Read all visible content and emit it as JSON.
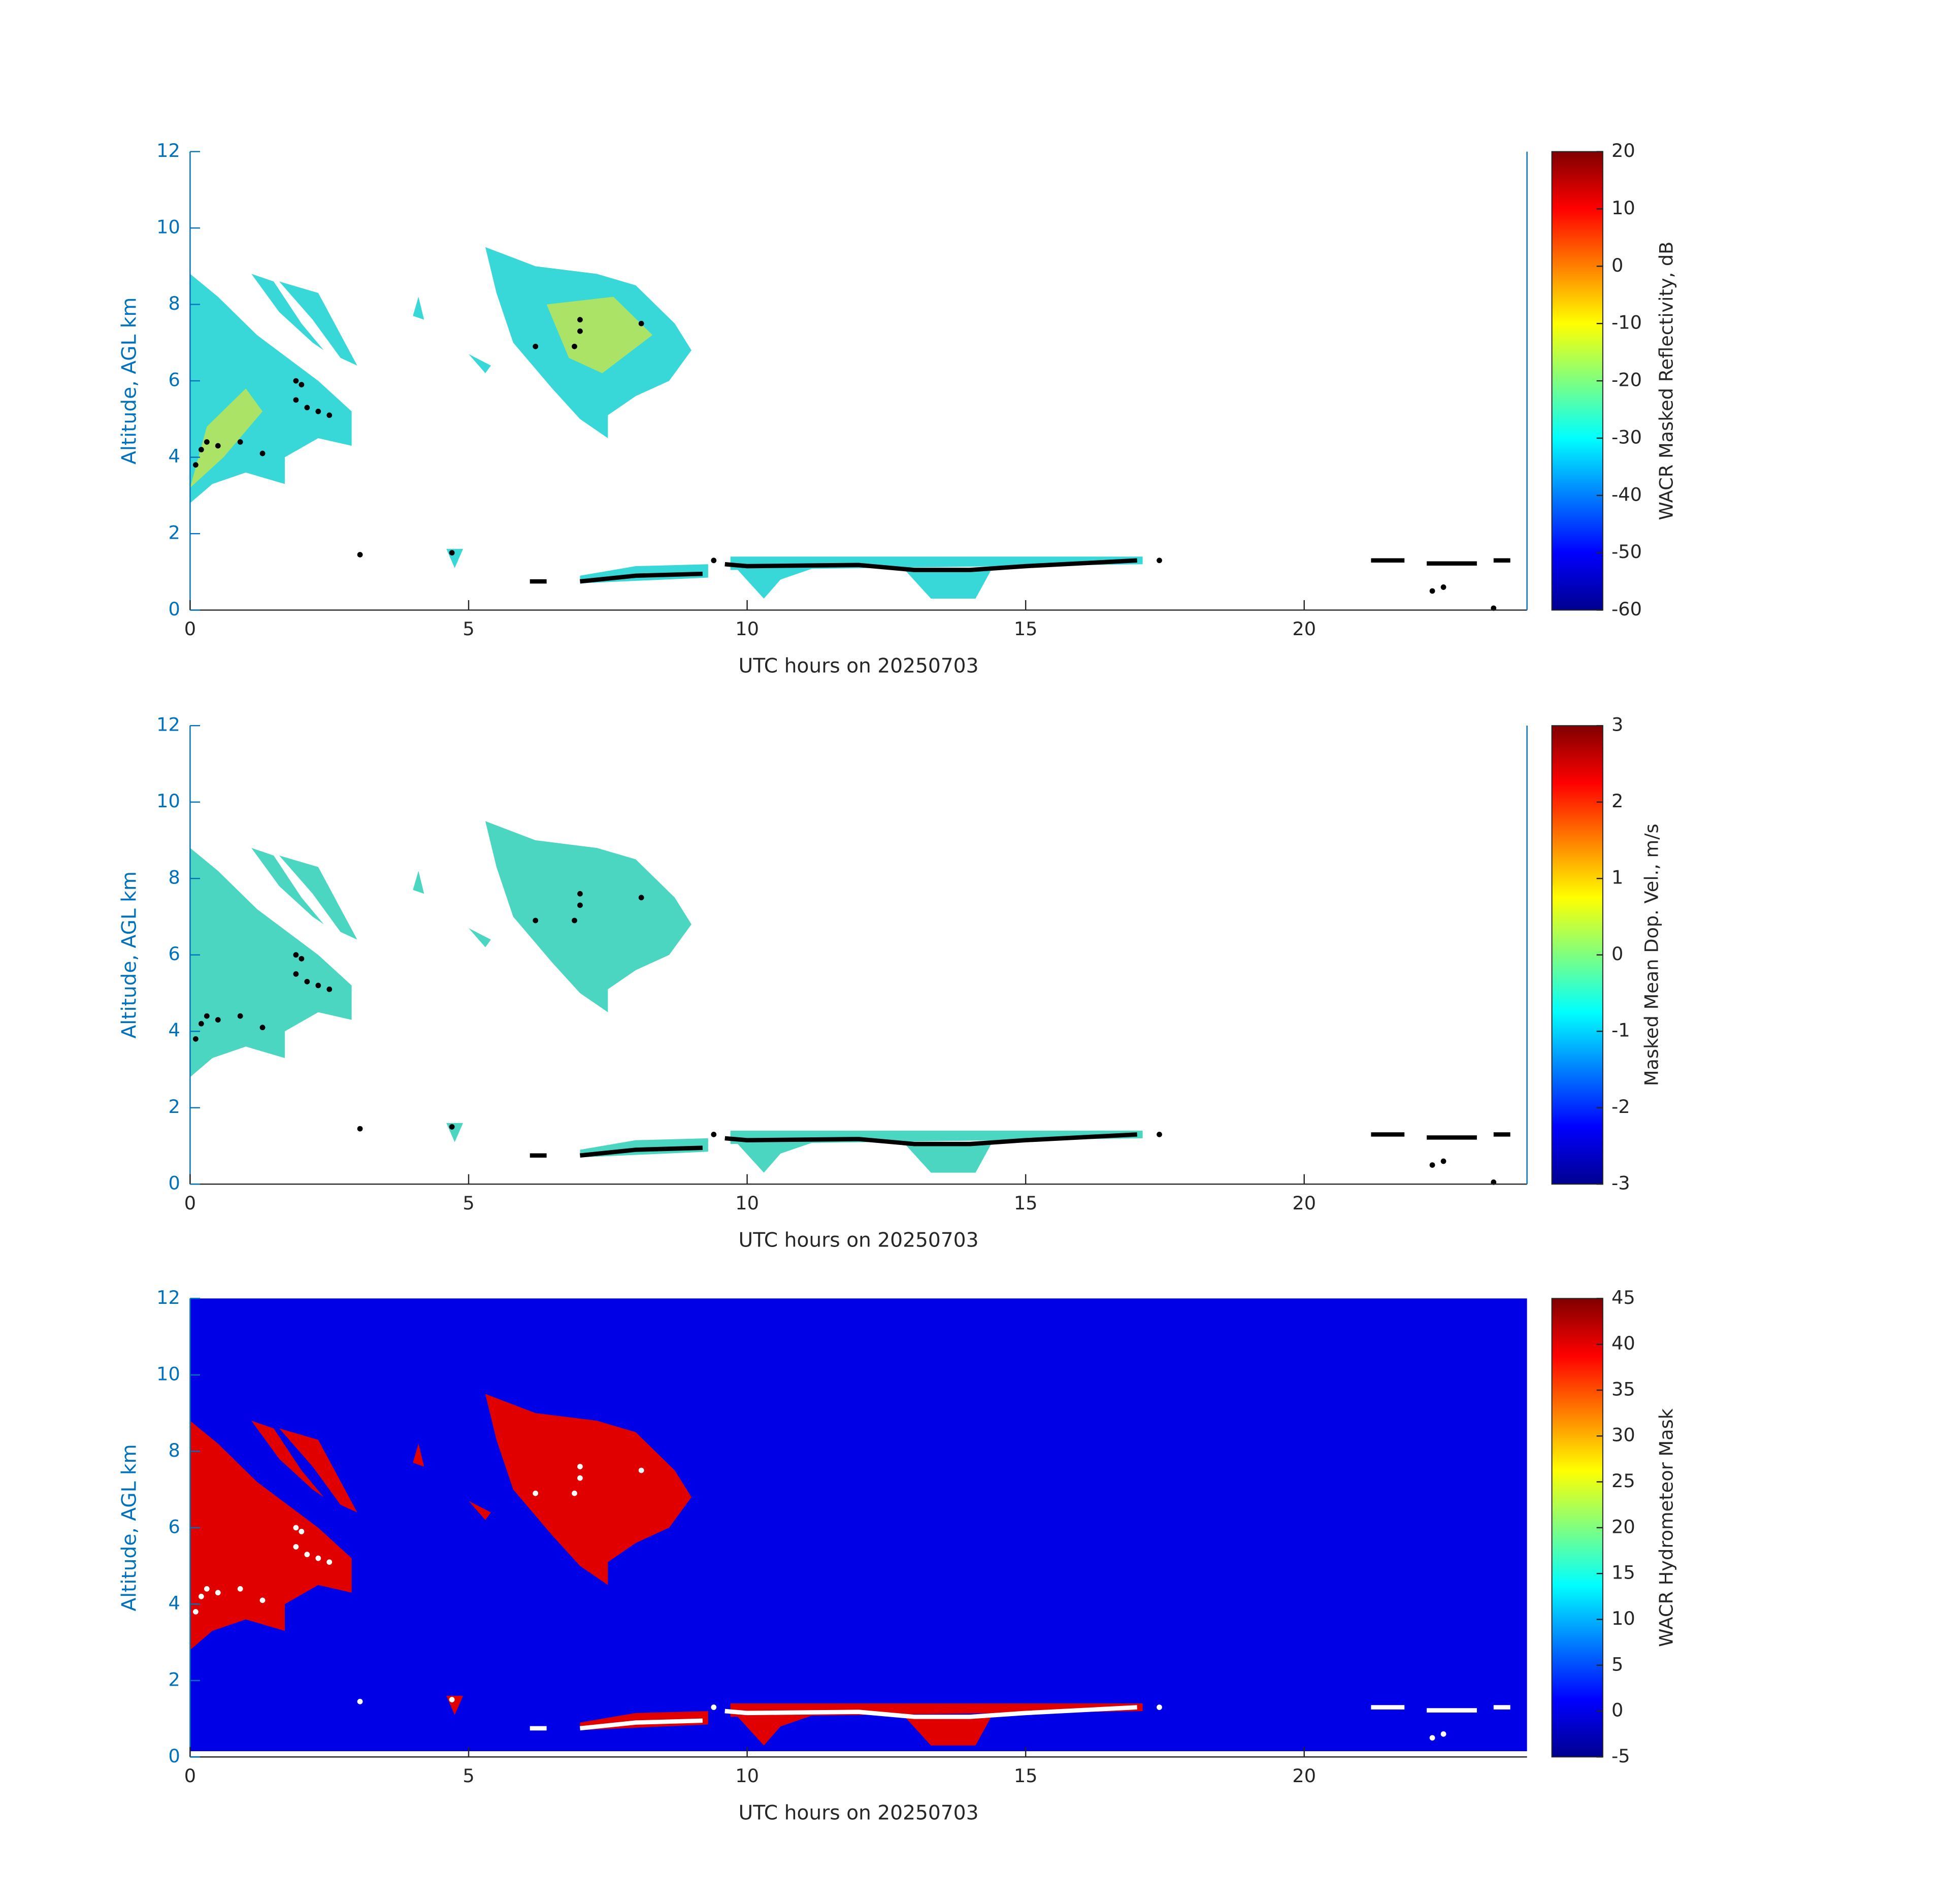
{
  "chart_data": [
    {
      "type": "heatmap",
      "xlabel": "UTC hours on 20250703",
      "ylabel": "Altitude, AGL km",
      "xlim": [
        0,
        24
      ],
      "xticks": [
        0,
        5,
        10,
        15,
        20
      ],
      "ylim": [
        0,
        12
      ],
      "yticks": [
        0,
        2,
        4,
        6,
        8,
        10,
        12
      ],
      "colorbar": {
        "label": "WACR Masked Reflectivity, dB",
        "colormap": "jet",
        "clim": [
          -60,
          20
        ],
        "ticks": [
          -60,
          -50,
          -40,
          -30,
          -20,
          -10,
          0,
          10,
          20
        ]
      }
    },
    {
      "type": "heatmap",
      "xlabel": "UTC hours on 20250703",
      "ylabel": "Altitude, AGL km",
      "xlim": [
        0,
        24
      ],
      "xticks": [
        0,
        5,
        10,
        15,
        20
      ],
      "ylim": [
        0,
        12
      ],
      "yticks": [
        0,
        2,
        4,
        6,
        8,
        10,
        12
      ],
      "colorbar": {
        "label": "Masked Mean Dop. Vel., m/s",
        "colormap": "jet",
        "clim": [
          -3,
          3
        ],
        "ticks": [
          -3,
          -2,
          -1,
          0,
          1,
          2,
          3
        ]
      }
    },
    {
      "type": "heatmap",
      "xlabel": "UTC hours on 20250703",
      "ylabel": "Altitude, AGL km",
      "xlim": [
        0,
        24
      ],
      "xticks": [
        0,
        5,
        10,
        15,
        20
      ],
      "ylim": [
        0,
        12
      ],
      "yticks": [
        0,
        2,
        4,
        6,
        8,
        10,
        12
      ],
      "colorbar": {
        "label": "WACR Hydrometeor Mask",
        "colormap": "jet",
        "clim": [
          -5,
          45
        ],
        "ticks": [
          -5,
          0,
          5,
          10,
          15,
          20,
          25,
          30,
          35,
          40,
          45
        ]
      }
    }
  ]
}
